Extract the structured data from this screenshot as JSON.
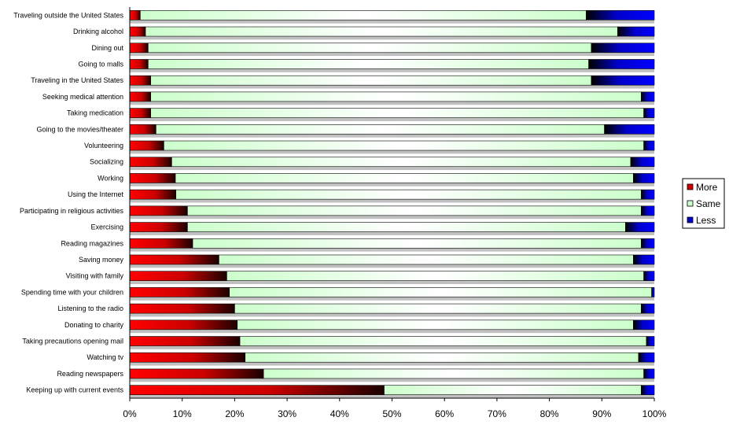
{
  "chart_data": {
    "type": "bar",
    "orientation": "horizontal",
    "stacked": "percent",
    "categories": [
      "Traveling outside the United States",
      "Drinking alcohol",
      "Dining out",
      "Going to malls",
      "Traveling in the United States",
      "Seeking medical attention",
      "Taking medication",
      "Going to the movies/theater",
      "Volunteering",
      "Socializing",
      "Working",
      "Using the Internet",
      "Participating in religious activities",
      "Exercising",
      "Reading magazines",
      "Saving money",
      "Visiting with family",
      "Spending time with your children",
      "Listening to the radio",
      "Donating to charity",
      "Taking precautions opening mail",
      "Watching tv",
      "Reading newspapers",
      "Keeping up with current events"
    ],
    "series": [
      {
        "name": "More",
        "color": "#ff0000",
        "values": [
          2,
          3,
          3.5,
          3.5,
          4,
          4,
          4,
          5,
          6.5,
          8,
          8.7,
          8.8,
          11,
          11,
          12,
          17,
          18.5,
          19,
          20,
          20.5,
          21,
          22,
          25.5,
          48.5
        ]
      },
      {
        "name": "Same",
        "color": "#ccffcc",
        "values": [
          85,
          90,
          84.5,
          84,
          84,
          93.5,
          94,
          85.5,
          91.5,
          87.5,
          87.3,
          88.7,
          86.5,
          83.5,
          85.5,
          79,
          79.5,
          80.5,
          77.5,
          75.5,
          77.5,
          75,
          72.5,
          49
        ]
      },
      {
        "name": "Less",
        "color": "#0000ff",
        "values": [
          13,
          7,
          12,
          12.5,
          12,
          2.5,
          2,
          9.5,
          2,
          4.5,
          4,
          2.5,
          2.5,
          5.5,
          2.5,
          4,
          2,
          0.5,
          2.5,
          4,
          1.5,
          3,
          2,
          2.5
        ]
      }
    ],
    "x_ticks": [
      "0%",
      "10%",
      "20%",
      "30%",
      "40%",
      "50%",
      "60%",
      "70%",
      "80%",
      "90%",
      "100%"
    ],
    "xlim": [
      0,
      100
    ],
    "legend": "right",
    "title": "",
    "xlabel": "",
    "ylabel": ""
  }
}
